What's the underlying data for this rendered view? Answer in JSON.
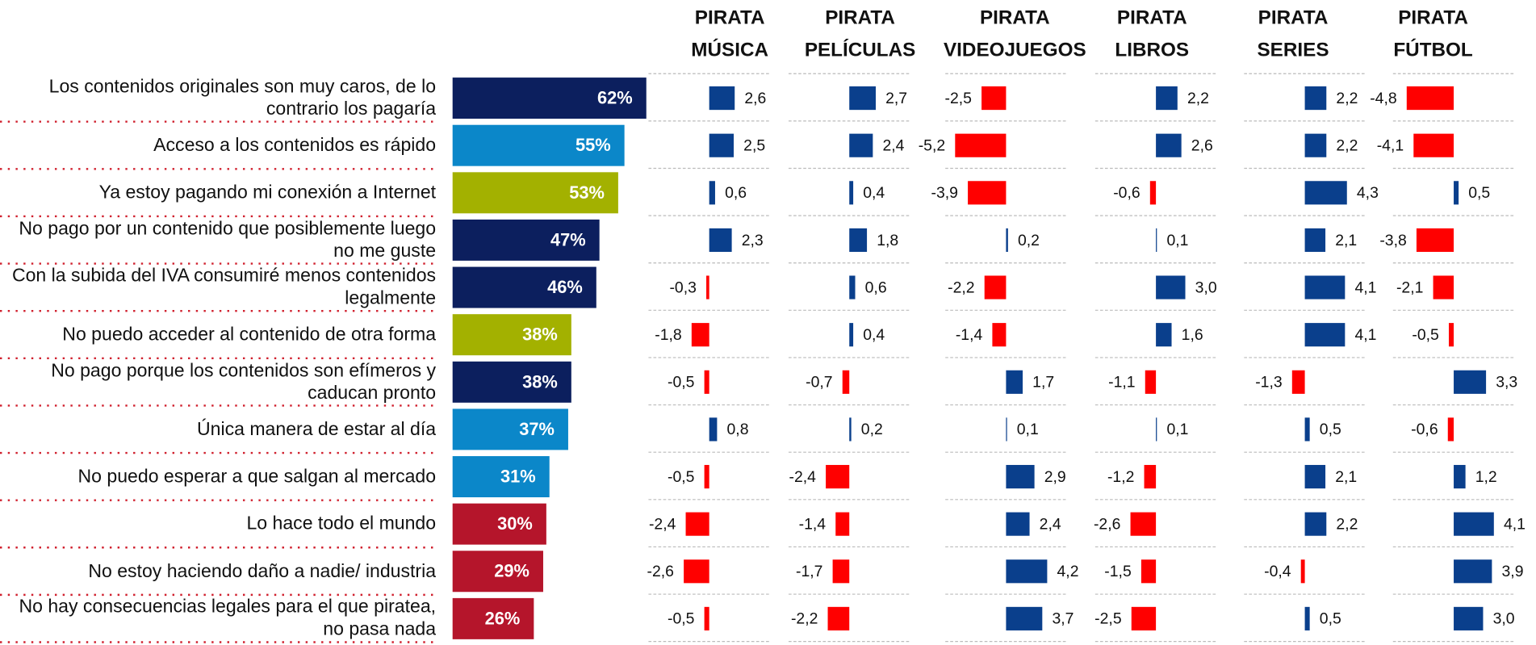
{
  "chart_data": [
    {
      "type": "bar",
      "categories": [
        "Los contenidos originales son muy caros, de lo contrario los pagaría",
        "Acceso a los contenidos es rápido",
        "Ya estoy pagando mi conexión a Internet",
        "No pago por un contenido que posiblemente luego no me guste",
        "Con la subida del IVA consumiré menos contenidos legalmente",
        "No puedo acceder al contenido de otra forma",
        "No pago porque los contenidos son efímeros y caducan pronto",
        "Única manera de estar al día",
        "No puedo esperar a que salgan al mercado",
        "Lo hace todo el mundo",
        "No estoy haciendo daño a nadie/ industria",
        "No hay consecuencias legales para el que piratea, no pasa nada"
      ],
      "values": [
        62,
        55,
        53,
        47,
        46,
        38,
        38,
        37,
        31,
        30,
        29,
        26
      ],
      "value_labels": [
        "62%",
        "55%",
        "53%",
        "47%",
        "46%",
        "38%",
        "38%",
        "37%",
        "31%",
        "30%",
        "29%",
        "26%"
      ],
      "colors": [
        "#0c1f5e",
        "#0b87c9",
        "#a3b100",
        "#0c1f5e",
        "#0c1f5e",
        "#a3b100",
        "#0c1f5e",
        "#0b87c9",
        "#0b87c9",
        "#b5152b",
        "#b5152b",
        "#b5152b"
      ]
    },
    {
      "type": "bar",
      "title": [
        "PIRATA",
        "MÚSICA"
      ],
      "color": "#0a3f8c",
      "negative_color": "#ff0000",
      "values": [
        2.6,
        2.5,
        0.6,
        2.3,
        -0.3,
        -1.8,
        -0.5,
        0.8,
        -0.5,
        -2.4,
        -2.6,
        -0.5
      ],
      "value_labels": [
        "2,6",
        "2,5",
        "0,6",
        "2,3",
        "-0,3",
        "-1,8",
        "-0,5",
        "0,8",
        "-0,5",
        "-2,4",
        "-2,6",
        "-0,5"
      ]
    },
    {
      "type": "bar",
      "title": [
        "PIRATA",
        "PELÍCULAS"
      ],
      "color": "#0a3f8c",
      "negative_color": "#ff0000",
      "values": [
        2.7,
        2.4,
        0.4,
        1.8,
        0.6,
        0.4,
        -0.7,
        0.2,
        -2.4,
        -1.4,
        -1.7,
        -2.2
      ],
      "value_labels": [
        "2,7",
        "2,4",
        "0,4",
        "1,8",
        "0,6",
        "0,4",
        "-0,7",
        "0,2",
        "-2,4",
        "-1,4",
        "-1,7",
        "-2,2"
      ]
    },
    {
      "type": "bar",
      "title": [
        "PIRATA",
        "VIDEOJUEGOS"
      ],
      "color": "#0a3f8c",
      "negative_color": "#ff0000",
      "values": [
        -2.5,
        -5.2,
        -3.9,
        0.2,
        -2.2,
        -1.4,
        1.7,
        0.1,
        2.9,
        2.4,
        4.2,
        3.7
      ],
      "value_labels": [
        "-2,5",
        "-5,2",
        "-3,9",
        "0,2",
        "-2,2",
        "-1,4",
        "1,7",
        "0,1",
        "2,9",
        "2,4",
        "4,2",
        "3,7"
      ]
    },
    {
      "type": "bar",
      "title": [
        "PIRATA",
        "LIBROS"
      ],
      "color": "#0a3f8c",
      "negative_color": "#ff0000",
      "values": [
        2.2,
        2.6,
        -0.6,
        0.1,
        3.0,
        1.6,
        -1.1,
        0.1,
        -1.2,
        -2.6,
        -1.5,
        -2.5
      ],
      "value_labels": [
        "2,2",
        "2,6",
        "-0,6",
        "0,1",
        "3,0",
        "1,6",
        "-1,1",
        "0,1",
        "-1,2",
        "-2,6",
        "-1,5",
        "-2,5"
      ]
    },
    {
      "type": "bar",
      "title": [
        "PIRATA",
        "SERIES"
      ],
      "color": "#0a3f8c",
      "negative_color": "#ff0000",
      "values": [
        2.2,
        2.2,
        4.3,
        2.1,
        4.1,
        4.1,
        -1.3,
        0.5,
        2.1,
        2.2,
        -0.4,
        0.5
      ],
      "value_labels": [
        "2,2",
        "2,2",
        "4,3",
        "2,1",
        "4,1",
        "4,1",
        "-1,3",
        "0,5",
        "2,1",
        "2,2",
        "-0,4",
        "0,5"
      ]
    },
    {
      "type": "bar",
      "title": [
        "PIRATA",
        "FÚTBOL"
      ],
      "color": "#0a3f8c",
      "negative_color": "#ff0000",
      "values": [
        -4.8,
        -4.1,
        0.5,
        -3.8,
        -2.1,
        -0.5,
        3.3,
        -0.6,
        1.2,
        4.1,
        3.9,
        3.0
      ],
      "value_labels": [
        "-4,8",
        "-4,1",
        "0,5",
        "-3,8",
        "-2,1",
        "-0,5",
        "3,3",
        "-0,6",
        "1,2",
        "4,1",
        "3,9",
        "3,0"
      ]
    }
  ]
}
